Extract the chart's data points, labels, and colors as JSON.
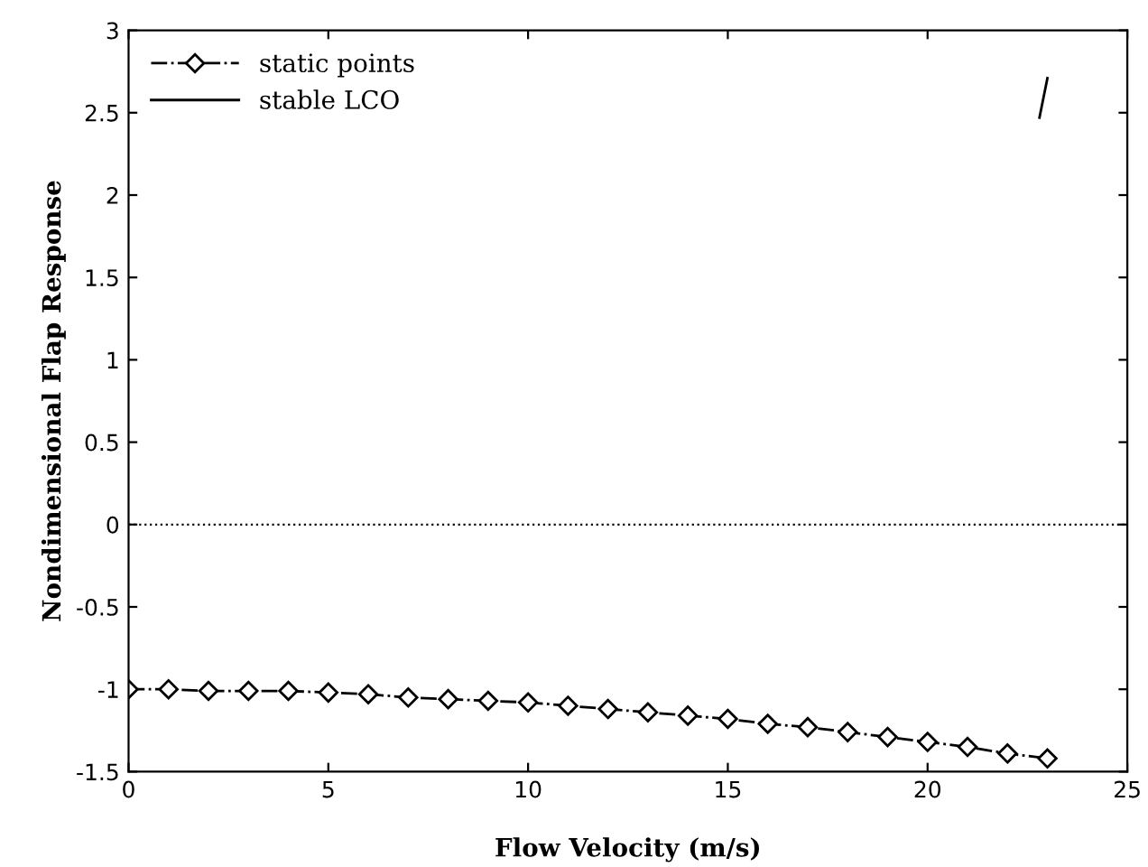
{
  "chart_data": {
    "type": "line",
    "xlabel": "Flow Velocity (m/s)",
    "ylabel": "Nondimensional Flap Response",
    "xlim": [
      0,
      25
    ],
    "xticks": [
      0,
      5,
      10,
      15,
      20,
      25
    ],
    "ylim": [
      -1.5,
      3
    ],
    "yticks": [
      -1.5,
      -1,
      -0.5,
      0,
      0.5,
      1,
      1.5,
      2,
      2.5,
      3
    ],
    "grid": false,
    "legend": "top left",
    "ref_lines": [
      {
        "axis": "y",
        "value": 0,
        "color": "#000000",
        "line_style": "dotted"
      }
    ],
    "series": [
      {
        "name": "static points",
        "color": "#000000",
        "marker": "diamond",
        "line_style": "dashdot",
        "x": [
          0,
          1,
          2,
          3,
          4,
          5,
          6,
          7,
          8,
          9,
          10,
          11,
          12,
          13,
          14,
          15,
          16,
          17,
          18,
          19,
          20,
          21,
          22,
          23
        ],
        "values": [
          -1.0,
          -1.0,
          -1.01,
          -1.01,
          -1.01,
          -1.02,
          -1.03,
          -1.05,
          -1.06,
          -1.07,
          -1.08,
          -1.1,
          -1.12,
          -1.14,
          -1.16,
          -1.18,
          -1.21,
          -1.23,
          -1.26,
          -1.29,
          -1.32,
          -1.35,
          -1.39,
          -1.42
        ]
      },
      {
        "name": "stable LCO",
        "color": "#000000",
        "marker": "none",
        "line_style": "solid",
        "x": [
          22.8,
          23.0
        ],
        "values": [
          2.47,
          2.71
        ]
      }
    ]
  }
}
